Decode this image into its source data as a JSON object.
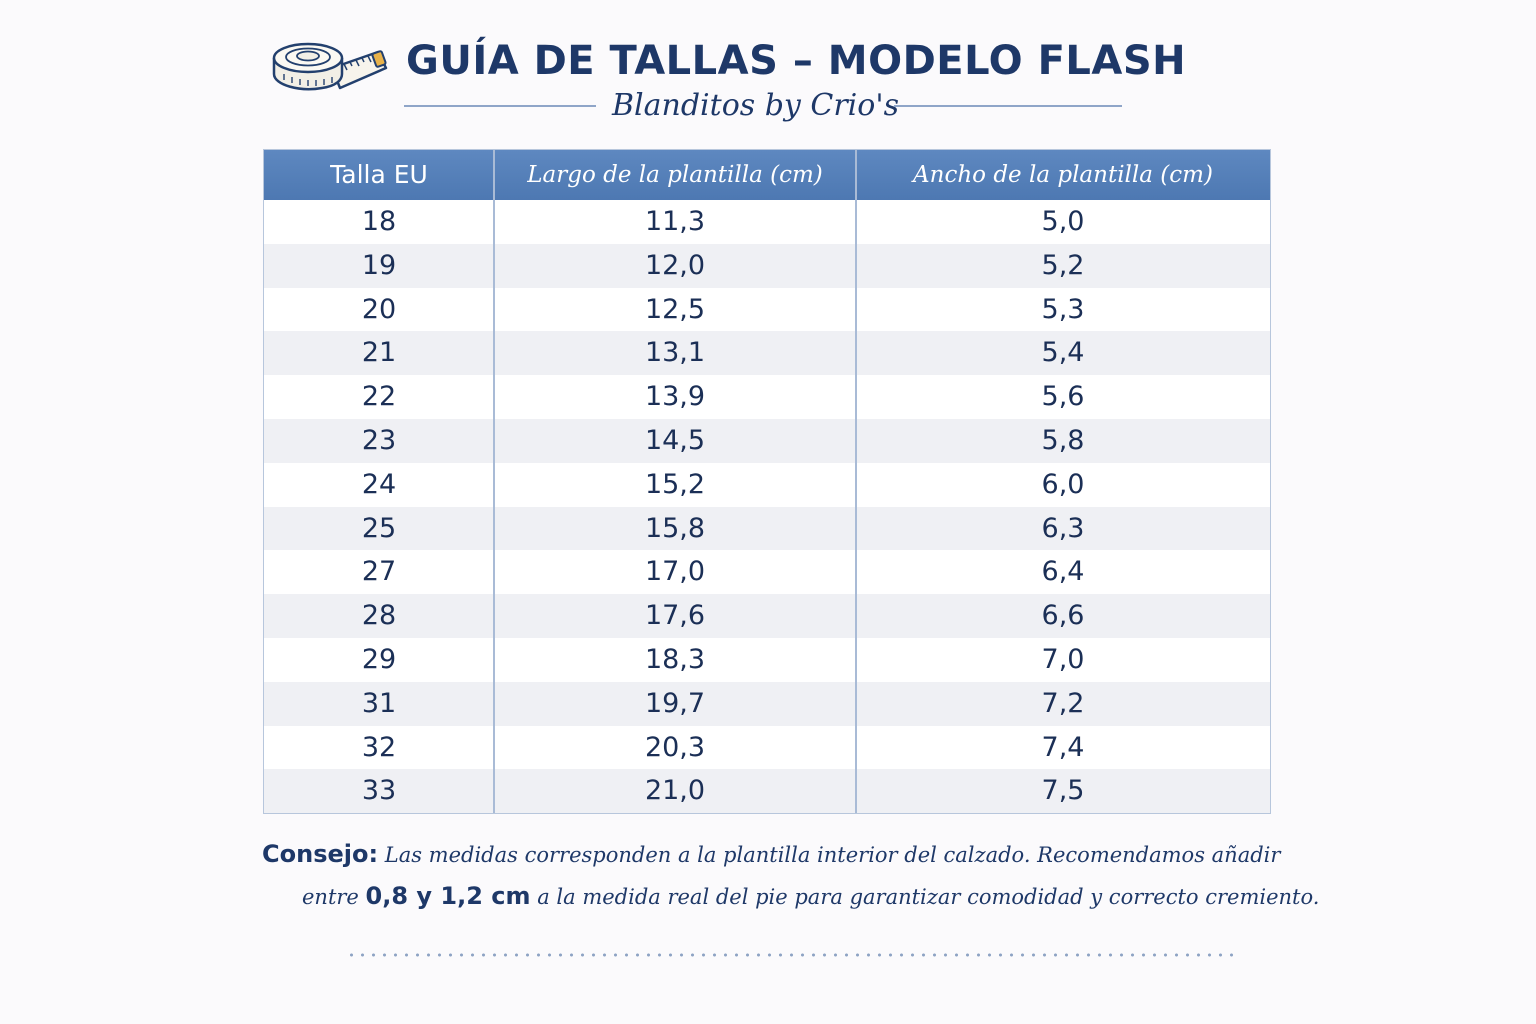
{
  "header": {
    "title": "GUÍA DE TALLAS – MODELO FLASH",
    "subtitle": "Blanditos by Crio's",
    "icon": "measuring-tape-icon"
  },
  "table": {
    "headers": [
      "Talla EU",
      "Largo de la plantilla (cm)",
      "Ancho de la plantilla (cm)"
    ],
    "rows": [
      [
        "18",
        "11,3",
        "5,0"
      ],
      [
        "19",
        "12,0",
        "5,2"
      ],
      [
        "20",
        "12,5",
        "5,3"
      ],
      [
        "21",
        "13,1",
        "5,4"
      ],
      [
        "22",
        "13,9",
        "5,6"
      ],
      [
        "23",
        "14,5",
        "5,8"
      ],
      [
        "24",
        "15,2",
        "6,0"
      ],
      [
        "25",
        "15,8",
        "6,3"
      ],
      [
        "27",
        "17,0",
        "6,4"
      ],
      [
        "28",
        "17,6",
        "6,6"
      ],
      [
        "29",
        "18,3",
        "7,0"
      ],
      [
        "31",
        "19,7",
        "7,2"
      ],
      [
        "32",
        "20,3",
        "7,4"
      ],
      [
        "33",
        "21,0",
        "7,5"
      ]
    ]
  },
  "tip": {
    "label": "Consejo:",
    "line1": "Las medidas corresponden a la plantilla interior del  calzado. Recomendamos añadir",
    "line2_pre": "entre",
    "line2_strong": "0,8 y 1,2 cm",
    "line2_post": "a la medida real del pie para garantizar comodidad y correcto cremiento."
  },
  "colors": {
    "title": "#1e3868",
    "header_bg": "#5581ba",
    "row_alt": "#eff0f4",
    "text": "#1b2f56"
  }
}
